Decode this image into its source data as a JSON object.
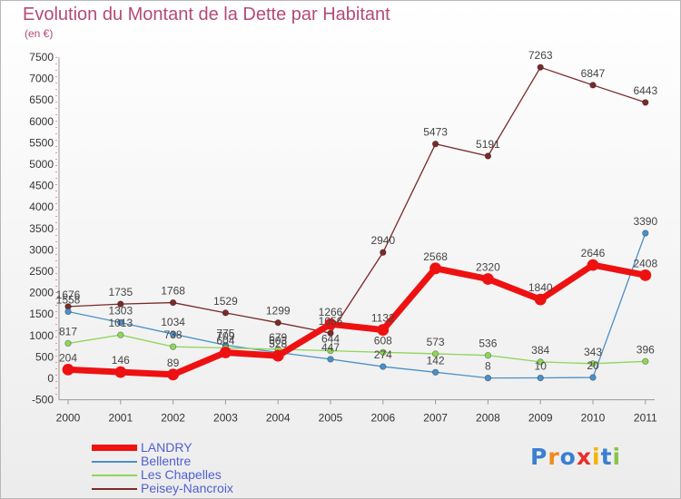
{
  "header": {
    "title": "Evolution du Montant de la Dette par Habitant",
    "unit": "(en €)"
  },
  "logo": {
    "text": "Proxiti"
  },
  "chart_data": {
    "type": "line",
    "title": "Evolution du Montant de la Dette par Habitant",
    "ylabel": "(en €)",
    "xlabel": "",
    "ylim": [
      -500,
      7500
    ],
    "yticks": [
      -500,
      0,
      500,
      1000,
      1500,
      2000,
      2500,
      3000,
      3500,
      4000,
      4500,
      5000,
      5500,
      6000,
      6500,
      7000,
      7500
    ],
    "categories": [
      "2000",
      "2001",
      "2002",
      "2003",
      "2004",
      "2005",
      "2006",
      "2007",
      "2008",
      "2009",
      "2010",
      "2011"
    ],
    "grid": false,
    "legend_position": "bottom-left",
    "series": [
      {
        "name": "LANDRY",
        "color": "#ee1111",
        "values": [
          204,
          146,
          89,
          604,
          528,
          1266,
          1132,
          2568,
          2320,
          1840,
          2646,
          2408
        ]
      },
      {
        "name": "Bellentre",
        "color": "#4a90c8",
        "values": [
          1558,
          1303,
          1034,
          775,
          603,
          447,
          274,
          142,
          8,
          10,
          20,
          3390
        ]
      },
      {
        "name": "Les Chapelles",
        "color": "#8ed65a",
        "values": [
          817,
          1013,
          738,
          709,
          679,
          644,
          608,
          573,
          536,
          384,
          343,
          396
        ]
      },
      {
        "name": "Peisey-Nancroix",
        "color": "#7a2a2a",
        "values": [
          1676,
          1735,
          1768,
          1529,
          1299,
          1056,
          2940,
          5473,
          5191,
          7263,
          6847,
          6443
        ]
      }
    ]
  }
}
